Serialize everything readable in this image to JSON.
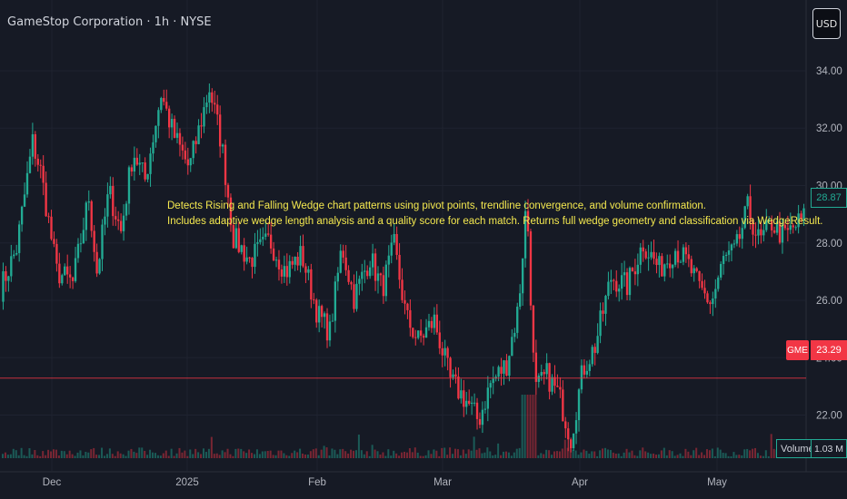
{
  "header": {
    "title": "GameStop Corporation · 1h · NYSE"
  },
  "currency_button": {
    "label": "USD"
  },
  "annotation": {
    "line1": "Detects Rising and Falling Wedge chart patterns using pivot points, trendline convergence, and volume confirmation.",
    "line2": "Includes adaptive wedge length analysis and a quality score for each match. Returns full wedge geometry and classification via WedgeResult."
  },
  "badges": {
    "symbol": "GME",
    "current_price": "23.29",
    "last_price": "28.87",
    "volume_label": "Volume",
    "volume_value": "1.03 M"
  },
  "colors": {
    "background": "#161a25",
    "up": "#22ab94",
    "down": "#f23645",
    "annotation": "#f5e94f",
    "text": "#b2b5be"
  },
  "chart_data": {
    "type": "candlestick",
    "title": "GameStop Corporation · 1h · NYSE",
    "symbol": "GME",
    "interval": "1h",
    "exchange": "NYSE",
    "currency": "USD",
    "ylim": [
      20.5,
      35.2
    ],
    "y_ticks": [
      "22.00",
      "24.00",
      "26.00",
      "28.00",
      "30.00",
      "32.00",
      "34.00"
    ],
    "x_ticks": [
      "Dec",
      "2025",
      "Feb",
      "Mar",
      "Apr",
      "May"
    ],
    "price_path": [
      {
        "x": 0,
        "y": 26.4
      },
      {
        "x": 0.02,
        "y": 27.8
      },
      {
        "x": 0.04,
        "y": 31.5
      },
      {
        "x": 0.05,
        "y": 30.5
      },
      {
        "x": 0.07,
        "y": 27.0
      },
      {
        "x": 0.09,
        "y": 26.6
      },
      {
        "x": 0.11,
        "y": 29.6
      },
      {
        "x": 0.12,
        "y": 27.0
      },
      {
        "x": 0.135,
        "y": 29.8
      },
      {
        "x": 0.15,
        "y": 28.4
      },
      {
        "x": 0.165,
        "y": 31.2
      },
      {
        "x": 0.18,
        "y": 30.2
      },
      {
        "x": 0.2,
        "y": 33.2
      },
      {
        "x": 0.215,
        "y": 31.8
      },
      {
        "x": 0.235,
        "y": 30.6
      },
      {
        "x": 0.26,
        "y": 33.4
      },
      {
        "x": 0.275,
        "y": 31.5
      },
      {
        "x": 0.29,
        "y": 28.2
      },
      {
        "x": 0.31,
        "y": 27.4
      },
      {
        "x": 0.335,
        "y": 28.1
      },
      {
        "x": 0.355,
        "y": 27.0
      },
      {
        "x": 0.375,
        "y": 27.6
      },
      {
        "x": 0.395,
        "y": 25.5
      },
      {
        "x": 0.41,
        "y": 24.9
      },
      {
        "x": 0.425,
        "y": 27.9
      },
      {
        "x": 0.44,
        "y": 26.1
      },
      {
        "x": 0.46,
        "y": 27.5
      },
      {
        "x": 0.475,
        "y": 26.4
      },
      {
        "x": 0.49,
        "y": 27.9
      },
      {
        "x": 0.505,
        "y": 25.4
      },
      {
        "x": 0.52,
        "y": 24.6
      },
      {
        "x": 0.54,
        "y": 25.3
      },
      {
        "x": 0.56,
        "y": 23.2
      },
      {
        "x": 0.58,
        "y": 22.5
      },
      {
        "x": 0.595,
        "y": 21.8
      },
      {
        "x": 0.61,
        "y": 23.1
      },
      {
        "x": 0.63,
        "y": 23.8
      },
      {
        "x": 0.645,
        "y": 25.8
      },
      {
        "x": 0.655,
        "y": 29.6
      },
      {
        "x": 0.665,
        "y": 22.8
      },
      {
        "x": 0.68,
        "y": 23.4
      },
      {
        "x": 0.695,
        "y": 22.7
      },
      {
        "x": 0.71,
        "y": 21.2
      },
      {
        "x": 0.725,
        "y": 23.6
      },
      {
        "x": 0.74,
        "y": 24.4
      },
      {
        "x": 0.76,
        "y": 26.8
      },
      {
        "x": 0.78,
        "y": 26.5
      },
      {
        "x": 0.8,
        "y": 28.0
      },
      {
        "x": 0.82,
        "y": 27.1
      },
      {
        "x": 0.84,
        "y": 27.8
      },
      {
        "x": 0.855,
        "y": 27.3
      },
      {
        "x": 0.87,
        "y": 26.4
      },
      {
        "x": 0.885,
        "y": 25.9
      },
      {
        "x": 0.9,
        "y": 27.4
      },
      {
        "x": 0.915,
        "y": 27.7
      },
      {
        "x": 0.93,
        "y": 29.2
      },
      {
        "x": 0.945,
        "y": 28.0
      },
      {
        "x": 0.96,
        "y": 28.7
      },
      {
        "x": 0.975,
        "y": 28.2
      },
      {
        "x": 1.0,
        "y": 28.87
      }
    ],
    "current_price": 23.29,
    "last_price": 28.87,
    "volume": "1.03 M"
  }
}
